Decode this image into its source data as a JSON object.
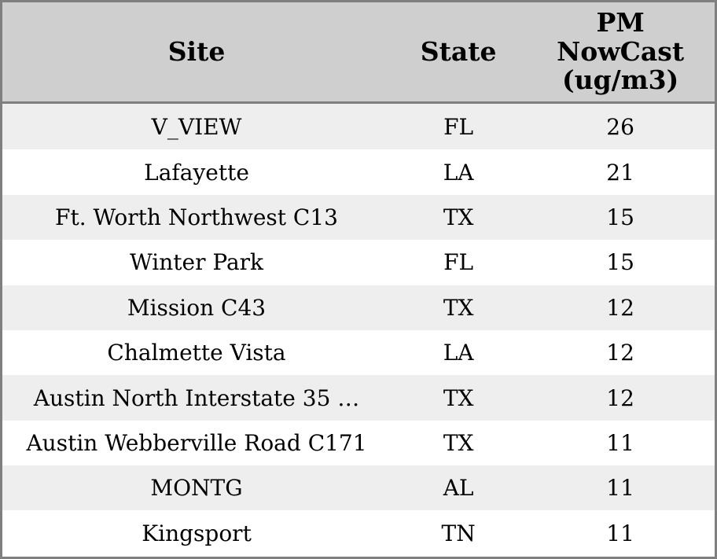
{
  "table": {
    "columns": [
      {
        "key": "site",
        "label": "Site"
      },
      {
        "key": "state",
        "label": "State"
      },
      {
        "key": "pm_nowcast",
        "label": "PM NowCast (ug/m3)"
      }
    ],
    "rows": [
      {
        "site": "V_VIEW",
        "state": "FL",
        "pm_nowcast": "26"
      },
      {
        "site": "Lafayette",
        "state": "LA",
        "pm_nowcast": "21"
      },
      {
        "site": "Ft. Worth Northwest C13",
        "state": "TX",
        "pm_nowcast": "15"
      },
      {
        "site": "Winter Park",
        "state": "FL",
        "pm_nowcast": "15"
      },
      {
        "site": "Mission C43",
        "state": "TX",
        "pm_nowcast": "12"
      },
      {
        "site": "Chalmette Vista",
        "state": "LA",
        "pm_nowcast": "12"
      },
      {
        "site": "Austin North Interstate 35 …",
        "state": "TX",
        "pm_nowcast": "12"
      },
      {
        "site": "Austin Webberville Road C171",
        "state": "TX",
        "pm_nowcast": "11"
      },
      {
        "site": "MONTG",
        "state": "AL",
        "pm_nowcast": "11"
      },
      {
        "site": "Kingsport",
        "state": "TN",
        "pm_nowcast": "11"
      }
    ],
    "colors": {
      "header_bg": "#cfcfcf",
      "row_odd_bg": "#eeeeee",
      "row_even_bg": "#ffffff",
      "border": "#7f7f7f",
      "text": "#000000"
    }
  }
}
